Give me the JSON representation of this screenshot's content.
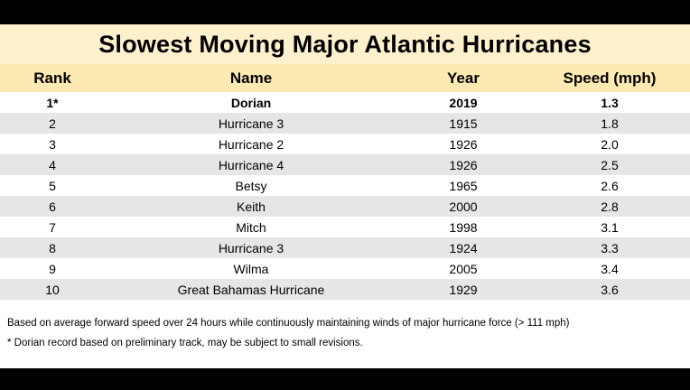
{
  "chart_data": {
    "type": "table",
    "title": "Slowest Moving Major Atlantic Hurricanes",
    "columns": [
      "Rank",
      "Name",
      "Year",
      "Speed (mph)"
    ],
    "rows": [
      [
        "1*",
        "Dorian",
        "2019",
        "1.3"
      ],
      [
        "2",
        "Hurricane 3",
        "1915",
        "1.8"
      ],
      [
        "3",
        "Hurricane 2",
        "1926",
        "2.0"
      ],
      [
        "4",
        "Hurricane 4",
        "1926",
        "2.5"
      ],
      [
        "5",
        "Betsy",
        "1965",
        "2.6"
      ],
      [
        "6",
        "Keith",
        "2000",
        "2.8"
      ],
      [
        "7",
        "Mitch",
        "1998",
        "3.1"
      ],
      [
        "8",
        "Hurricane 3",
        "1924",
        "3.3"
      ],
      [
        "9",
        "Wilma",
        "2005",
        "3.4"
      ],
      [
        "10",
        "Great Bahamas Hurricane",
        "1929",
        "3.6"
      ]
    ],
    "highlighted_row": 0,
    "notes": [
      "Based on average forward speed over 24 hours  while continuously maintaining winds of major hurricane force (> 111 mph)",
      "* Dorian record based on preliminary track, may be subject to small revisions."
    ]
  },
  "colors": {
    "title_band": "#fdf0cc",
    "header_band": "#fdeab2",
    "stripe": "#e6e6e6",
    "frame_background": "#000000"
  }
}
